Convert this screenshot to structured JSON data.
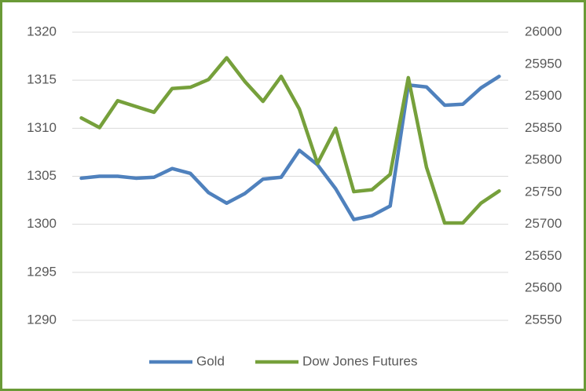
{
  "chart_data": {
    "type": "line",
    "series": [
      {
        "name": "Gold",
        "color": "#4f81bd",
        "values": [
          1304.8,
          1305.0,
          1305.0,
          1304.8,
          1304.9,
          1305.8,
          1305.3,
          1303.3,
          1302.2,
          1303.2,
          1304.7,
          1304.9,
          1307.7,
          1306.2,
          1303.7,
          1300.5,
          1300.9,
          1301.9,
          1314.5,
          1314.3,
          1312.4,
          1312.5,
          1314.2,
          1315.4
        ]
      },
      {
        "name": "Dow Jones Futures",
        "color": "#76a03b",
        "axis": "y2",
        "values": [
          25866,
          25851,
          25893,
          25884,
          25875,
          25912,
          25914,
          25926,
          25960,
          25923,
          25892,
          25931,
          25880,
          25795,
          25850,
          25751,
          25754,
          25778,
          25929,
          25789,
          25702,
          25702,
          25733,
          25752
        ]
      }
    ],
    "ylim": [
      1290,
      1320
    ],
    "yticks": [
      1290,
      1295,
      1300,
      1305,
      1310,
      1315,
      1320
    ],
    "y2lim": [
      25550,
      26000
    ],
    "y2ticks": [
      25550,
      25600,
      25650,
      25700,
      25750,
      25800,
      25850,
      25900,
      25950,
      26000
    ],
    "grid": true,
    "legend": "bottom"
  }
}
